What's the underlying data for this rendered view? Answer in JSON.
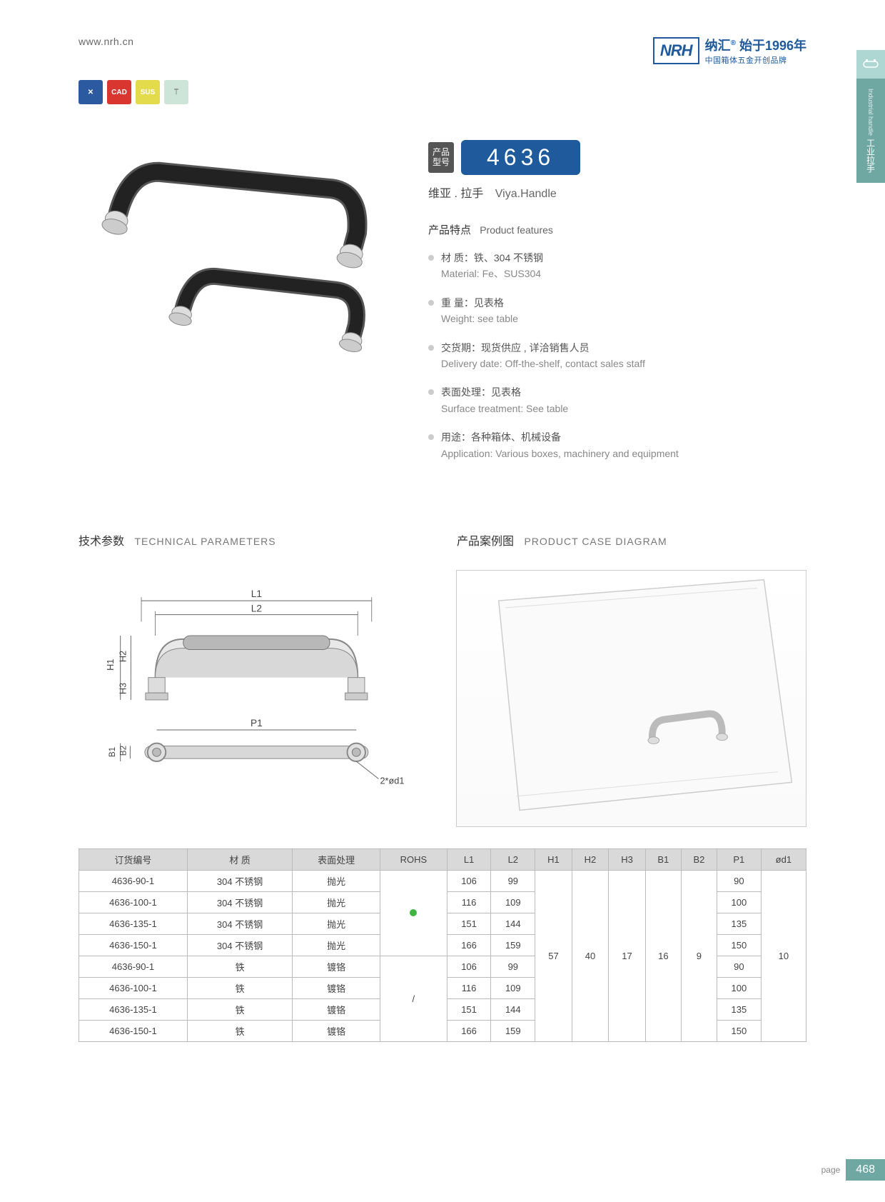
{
  "header": {
    "url": "www.nrh.cn",
    "logo_abbr": "NRH",
    "brand_cn": "纳汇",
    "since": "始于1996年",
    "tagline": "中国箱体五金开创品牌",
    "reg_mark": "®"
  },
  "side_tab": {
    "cn": "工业拉手",
    "en": "Industrial handle"
  },
  "icon_badges": [
    {
      "bg": "#2c5aa0",
      "label": "✕"
    },
    {
      "bg": "#d9362f",
      "label": "CAD"
    },
    {
      "bg": "#e4db4c",
      "label": "SUS"
    },
    {
      "bg": "#cde4d8",
      "label": "⟙"
    }
  ],
  "product": {
    "model_label": "产品\n型号",
    "model_number": "4636",
    "name_cn": "维亚 . 拉手",
    "name_en": "Viya.Handle"
  },
  "features": {
    "title_cn": "产品特点",
    "title_en": "Product features",
    "items": [
      {
        "cn": "材    质：铁、304 不锈钢",
        "en": "Material: Fe、SUS304"
      },
      {
        "cn": "重    量：见表格",
        "en": "Weight: see table"
      },
      {
        "cn": "交货期：现货供应 , 详洽销售人员",
        "en": "Delivery date: Off-the-shelf, contact sales staff"
      },
      {
        "cn": "表面处理：见表格",
        "en": "Surface treatment: See table"
      },
      {
        "cn": "用途：各种箱体、机械设备",
        "en": "Application: Various boxes, machinery and equipment"
      }
    ]
  },
  "sections": {
    "tech_cn": "技术参数",
    "tech_en": "TECHNICAL PARAMETERS",
    "case_cn": "产品案例图",
    "case_en": "PRODUCT CASE DIAGRAM"
  },
  "tech_labels": {
    "L1": "L1",
    "L2": "L2",
    "P1": "P1",
    "H1": "H1",
    "H2": "H2",
    "H3": "H3",
    "B1": "B1",
    "B2": "B2",
    "od1": "2*ød1"
  },
  "table": {
    "columns": [
      "订货编号",
      "材    质",
      "表面处理",
      "ROHS",
      "L1",
      "L2",
      "H1",
      "H2",
      "H3",
      "B1",
      "B2",
      "P1",
      "ød1"
    ],
    "merged": {
      "rohs_green_rowspan": 4,
      "rohs_slash_rowspan": 4,
      "rohs_slash_value": "/",
      "H1": "57",
      "H2": "40",
      "H3": "17",
      "B1": "16",
      "B2": "9",
      "od1": "10",
      "dim_rowspan": 8
    },
    "rows": [
      {
        "code": "4636-90-1",
        "mat": "304 不锈钢",
        "surf": "抛光",
        "L1": "106",
        "L2": "99",
        "P1": "90"
      },
      {
        "code": "4636-100-1",
        "mat": "304 不锈钢",
        "surf": "抛光",
        "L1": "116",
        "L2": "109",
        "P1": "100"
      },
      {
        "code": "4636-135-1",
        "mat": "304 不锈钢",
        "surf": "抛光",
        "L1": "151",
        "L2": "144",
        "P1": "135"
      },
      {
        "code": "4636-150-1",
        "mat": "304 不锈钢",
        "surf": "抛光",
        "L1": "166",
        "L2": "159",
        "P1": "150"
      },
      {
        "code": "4636-90-1",
        "mat": "铁",
        "surf": "镀铬",
        "L1": "106",
        "L2": "99",
        "P1": "90"
      },
      {
        "code": "4636-100-1",
        "mat": "铁",
        "surf": "镀铬",
        "L1": "116",
        "L2": "109",
        "P1": "100"
      },
      {
        "code": "4636-135-1",
        "mat": "铁",
        "surf": "镀铬",
        "L1": "151",
        "L2": "144",
        "P1": "135"
      },
      {
        "code": "4636-150-1",
        "mat": "铁",
        "surf": "镀铬",
        "L1": "166",
        "L2": "159",
        "P1": "150"
      }
    ]
  },
  "footer": {
    "page_label": "page",
    "page_number": "468"
  },
  "colors": {
    "brand_blue": "#1e5a9c",
    "teal": "#6fa8a3",
    "table_header": "#d9d9d9",
    "border": "#bbbbbb"
  }
}
